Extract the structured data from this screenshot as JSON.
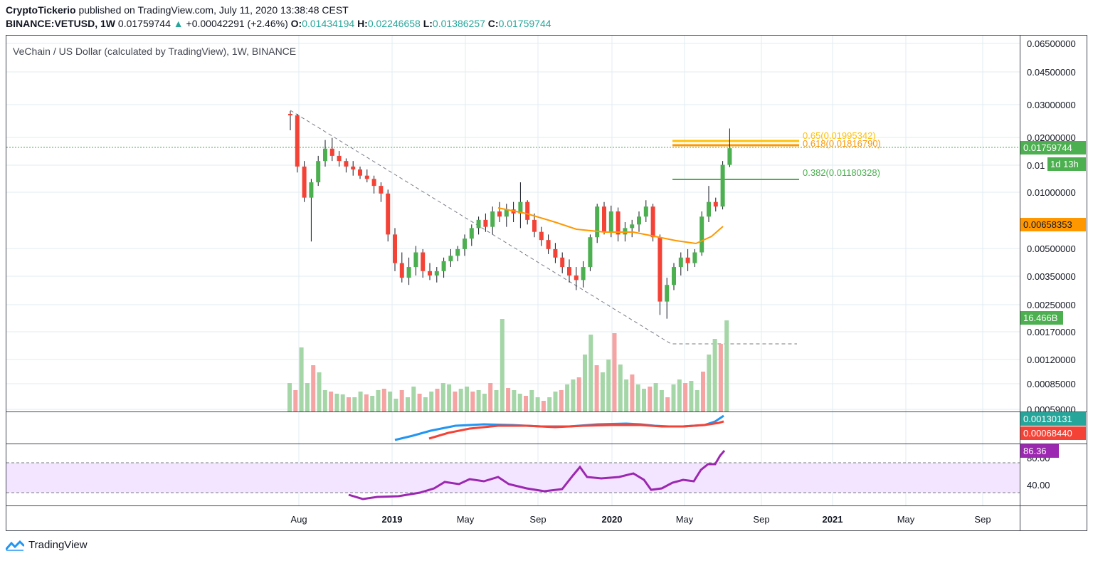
{
  "header": {
    "publisher": "CryptoTickerio",
    "published_text": "published on TradingView.com, July 11, 2020 13:38:48 CEST",
    "symbol": "BINANCE:VETUSD, 1W",
    "last": "0.01759744",
    "change_arrow": "▲",
    "change": "+0.00042291 (+2.46%)",
    "o_label": "O:",
    "o_value": "0.01434194",
    "h_label": "H:",
    "h_value": "0.02246658",
    "l_label": "L:",
    "l_value": "0.01386257",
    "c_label": "C:",
    "c_value": "0.01759744"
  },
  "chart_title": "VeChain / US Dollar (calculated by TradingView), 1W, BINANCE",
  "price_axis": [
    "0.06500000",
    "0.04500000",
    "0.03000000",
    "0.02000000",
    "0.01",
    "0.01000000",
    "0.00500000",
    "0.00350000",
    "0.00250000",
    "0.00170000",
    "0.00120000",
    "0.00085000",
    "0.00059000"
  ],
  "time_axis": [
    "Aug",
    "2019",
    "May",
    "Sep",
    "2020",
    "May",
    "Sep",
    "2021",
    "May",
    "Sep"
  ],
  "fib_levels": [
    {
      "label": "0.65(0.01995342)",
      "color": "#ffc107"
    },
    {
      "label": "0.618(0.01816790)",
      "color": "#ff9800"
    },
    {
      "label": "0.382(0.01180328)",
      "color": "#4caf50"
    }
  ],
  "badges": {
    "last_price": "0.01759744",
    "countdown": "1d 13h",
    "ma": "0.00658353",
    "volume": "16.466B",
    "macd": "0.00130131",
    "signal": "0.00068440",
    "rsi": "86.36"
  },
  "rsi_axis": {
    "upper": "80.00",
    "lower": "40.00"
  },
  "footer": {
    "brand": "TradingView"
  },
  "colors": {
    "up": "#26a69a",
    "down": "#ef5350",
    "up_candle": "#4caf50",
    "down_candle": "#f44336",
    "ma": "#ff9800",
    "macd": "#2196f3",
    "signal": "#f44336",
    "rsi": "#9c27b0",
    "rsi_band": "#f3e5ff",
    "grid": "#e1ecf2"
  },
  "chart_data": {
    "type": "candlestick",
    "series_price": [
      [
        0.027,
        0.028,
        0.022,
        0.0265
      ],
      [
        0.0265,
        0.027,
        0.013,
        0.014
      ],
      [
        0.014,
        0.015,
        0.009,
        0.0095
      ],
      [
        0.0095,
        0.012,
        0.0055,
        0.0115
      ],
      [
        0.0115,
        0.016,
        0.011,
        0.015
      ],
      [
        0.015,
        0.0195,
        0.014,
        0.0175
      ],
      [
        0.0175,
        0.02,
        0.015,
        0.016
      ],
      [
        0.016,
        0.017,
        0.014,
        0.015
      ],
      [
        0.015,
        0.0155,
        0.013,
        0.014
      ],
      [
        0.014,
        0.015,
        0.0125,
        0.0135
      ],
      [
        0.0135,
        0.014,
        0.012,
        0.0125
      ],
      [
        0.0125,
        0.0135,
        0.0115,
        0.012
      ],
      [
        0.012,
        0.0125,
        0.01,
        0.011
      ],
      [
        0.011,
        0.0115,
        0.009,
        0.01
      ],
      [
        0.01,
        0.0105,
        0.0055,
        0.006
      ],
      [
        0.006,
        0.0065,
        0.0038,
        0.0042
      ],
      [
        0.0042,
        0.0048,
        0.0033,
        0.0035
      ],
      [
        0.0035,
        0.0045,
        0.0032,
        0.004
      ],
      [
        0.004,
        0.0052,
        0.0036,
        0.0048
      ],
      [
        0.0048,
        0.005,
        0.0035,
        0.0038
      ],
      [
        0.0038,
        0.0042,
        0.0034,
        0.0036
      ],
      [
        0.0036,
        0.004,
        0.0033,
        0.0038
      ],
      [
        0.0038,
        0.0045,
        0.0035,
        0.0043
      ],
      [
        0.0043,
        0.005,
        0.004,
        0.0046
      ],
      [
        0.0046,
        0.0052,
        0.0043,
        0.005
      ],
      [
        0.005,
        0.006,
        0.0046,
        0.0057
      ],
      [
        0.0057,
        0.0068,
        0.0052,
        0.0065
      ],
      [
        0.0065,
        0.0075,
        0.006,
        0.0072
      ],
      [
        0.0072,
        0.0078,
        0.0062,
        0.0066
      ],
      [
        0.0066,
        0.0085,
        0.006,
        0.008
      ],
      [
        0.008,
        0.009,
        0.007,
        0.0075
      ],
      [
        0.0075,
        0.0088,
        0.0066,
        0.0082
      ],
      [
        0.0082,
        0.009,
        0.007,
        0.0078
      ],
      [
        0.0078,
        0.0115,
        0.0065,
        0.009
      ],
      [
        0.009,
        0.0092,
        0.0068,
        0.0072
      ],
      [
        0.0072,
        0.0078,
        0.0058,
        0.0062
      ],
      [
        0.0062,
        0.0066,
        0.0052,
        0.0056
      ],
      [
        0.0056,
        0.006,
        0.0047,
        0.005
      ],
      [
        0.005,
        0.0054,
        0.0042,
        0.0045
      ],
      [
        0.0045,
        0.0048,
        0.0037,
        0.004
      ],
      [
        0.004,
        0.0044,
        0.0033,
        0.0036
      ],
      [
        0.0036,
        0.004,
        0.003,
        0.0034
      ],
      [
        0.0034,
        0.0043,
        0.0031,
        0.004
      ],
      [
        0.004,
        0.006,
        0.0038,
        0.0058
      ],
      [
        0.0058,
        0.0088,
        0.0054,
        0.0085
      ],
      [
        0.0085,
        0.009,
        0.006,
        0.0062
      ],
      [
        0.0062,
        0.0086,
        0.0058,
        0.008
      ],
      [
        0.008,
        0.0084,
        0.0055,
        0.006
      ],
      [
        0.006,
        0.007,
        0.0055,
        0.0065
      ],
      [
        0.0065,
        0.0072,
        0.0058,
        0.0068
      ],
      [
        0.0068,
        0.008,
        0.0062,
        0.0075
      ],
      [
        0.0075,
        0.0092,
        0.007,
        0.0085
      ],
      [
        0.0085,
        0.0088,
        0.0055,
        0.0058
      ],
      [
        0.0058,
        0.006,
        0.0022,
        0.0026
      ],
      [
        0.0026,
        0.0035,
        0.0021,
        0.0032
      ],
      [
        0.0032,
        0.0042,
        0.003,
        0.004
      ],
      [
        0.004,
        0.0048,
        0.0036,
        0.0045
      ],
      [
        0.0045,
        0.005,
        0.0038,
        0.0042
      ],
      [
        0.0042,
        0.005,
        0.004,
        0.0048
      ],
      [
        0.0048,
        0.008,
        0.0046,
        0.0075
      ],
      [
        0.0075,
        0.011,
        0.007,
        0.009
      ],
      [
        0.009,
        0.0095,
        0.008,
        0.0085
      ],
      [
        0.0085,
        0.015,
        0.0082,
        0.0143
      ],
      [
        0.0143,
        0.0225,
        0.0139,
        0.0176
      ]
    ]
  }
}
